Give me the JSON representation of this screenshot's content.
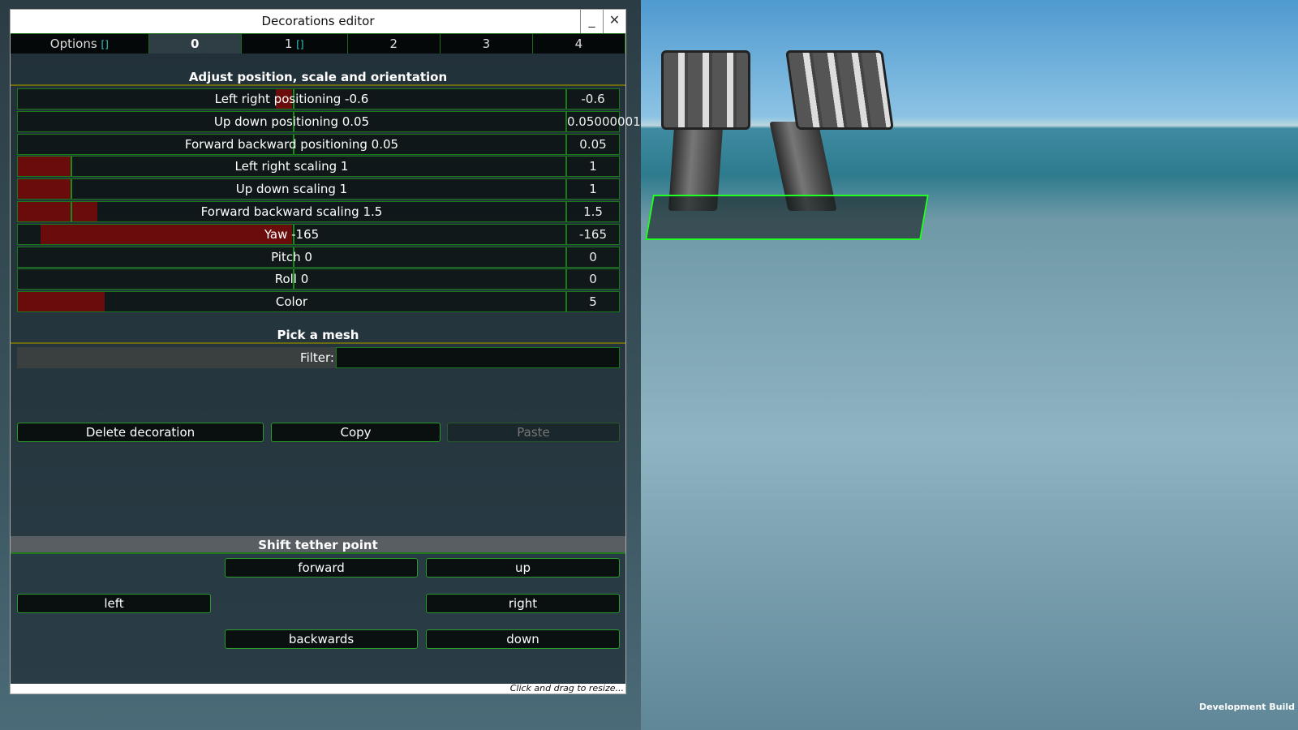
{
  "window": {
    "title": "Decorations editor",
    "minimize": "_",
    "close": "✕",
    "resize_hint": "Click and drag to resize..."
  },
  "tabs": [
    {
      "label": "Options",
      "marker": "[]"
    },
    {
      "label": "0"
    },
    {
      "label": "1",
      "marker": "[]"
    },
    {
      "label": "2"
    },
    {
      "label": "3"
    },
    {
      "label": "4"
    }
  ],
  "active_tab": "0",
  "adjust": {
    "heading": "Adjust position, scale and orientation",
    "rows": [
      {
        "label": "Left right positioning -0.6",
        "value": "-0.6",
        "num": -0.6
      },
      {
        "label": "Up down positioning 0.05",
        "value": "0.05000001",
        "num": 0.05
      },
      {
        "label": "Forward backward positioning 0.05",
        "value": "0.05",
        "num": 0.05
      },
      {
        "label": "Left right scaling 1",
        "value": "1",
        "num": 1
      },
      {
        "label": "Up down scaling 1",
        "value": "1",
        "num": 1
      },
      {
        "label": "Forward backward scaling 1.5",
        "value": "1.5",
        "num": 1.5
      },
      {
        "label": "Yaw -165",
        "value": "-165",
        "num": -165
      },
      {
        "label": "Pitch 0",
        "value": "0",
        "num": 0
      },
      {
        "label": "Roll 0",
        "value": "0",
        "num": 0
      },
      {
        "label": "Color",
        "value": "5",
        "num": 5
      }
    ]
  },
  "mesh": {
    "heading": "Pick a mesh",
    "filter_label": "Filter:",
    "filter_value": ""
  },
  "actions": {
    "delete": "Delete decoration",
    "copy": "Copy",
    "paste": "Paste"
  },
  "tether": {
    "heading": "Shift tether point",
    "forward": "forward",
    "up": "up",
    "left": "left",
    "right": "right",
    "backwards": "backwards",
    "down": "down"
  },
  "overlay": {
    "dev_build": "Development Build"
  },
  "colors": {
    "accent_green": "#1a7a1a",
    "fill_red": "#6a0c0c"
  }
}
